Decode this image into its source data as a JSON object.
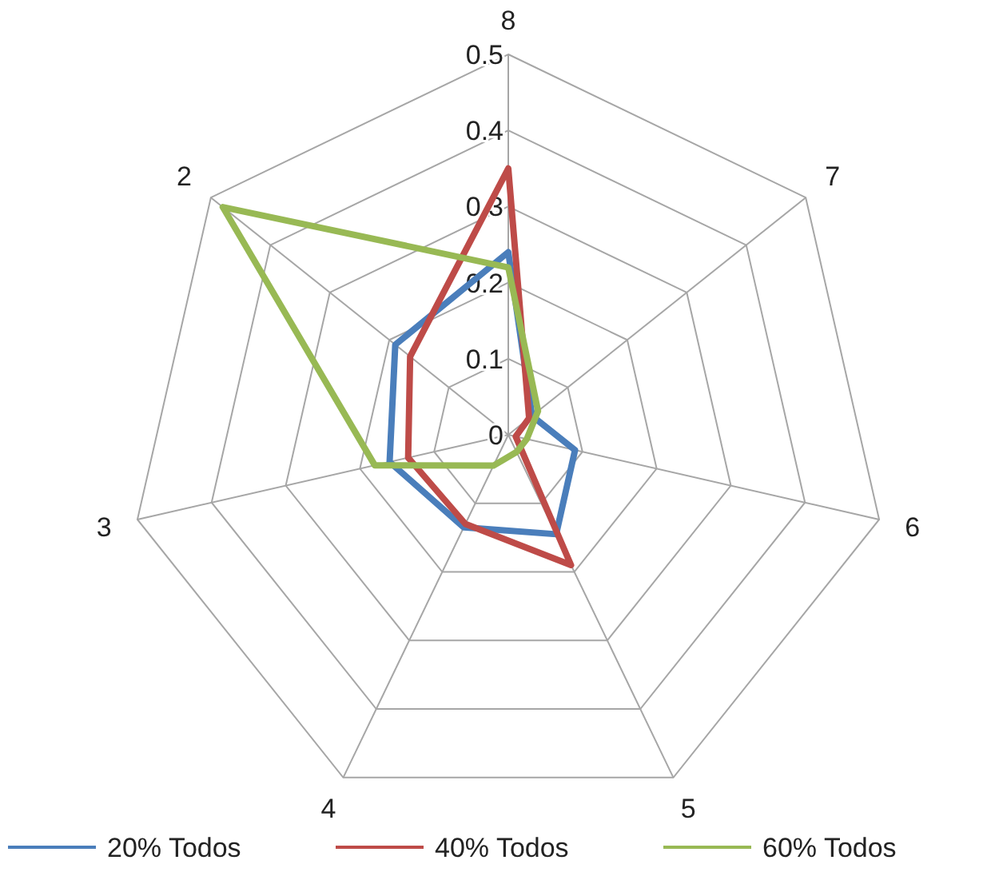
{
  "chart_data": {
    "type": "radar",
    "categories": [
      "8",
      "7",
      "6",
      "5",
      "4",
      "3",
      "2"
    ],
    "series": [
      {
        "name": "20% Todos",
        "color": "#4a7ebb",
        "values": [
          0.24,
          0.04,
          0.09,
          0.145,
          0.135,
          0.16,
          0.19
        ]
      },
      {
        "name": "40% Todos",
        "color": "#be4b48",
        "values": [
          0.35,
          0.035,
          0.01,
          0.19,
          0.13,
          0.135,
          0.165
        ]
      },
      {
        "name": "60% Todos",
        "color": "#98b954",
        "values": [
          0.22,
          0.05,
          0.025,
          0.025,
          0.045,
          0.18,
          0.48
        ]
      }
    ],
    "ylim": [
      0,
      0.5
    ],
    "yticks": [
      0,
      0.1,
      0.2,
      0.3,
      0.4,
      0.5
    ],
    "grid": true,
    "legend": "bottom"
  }
}
